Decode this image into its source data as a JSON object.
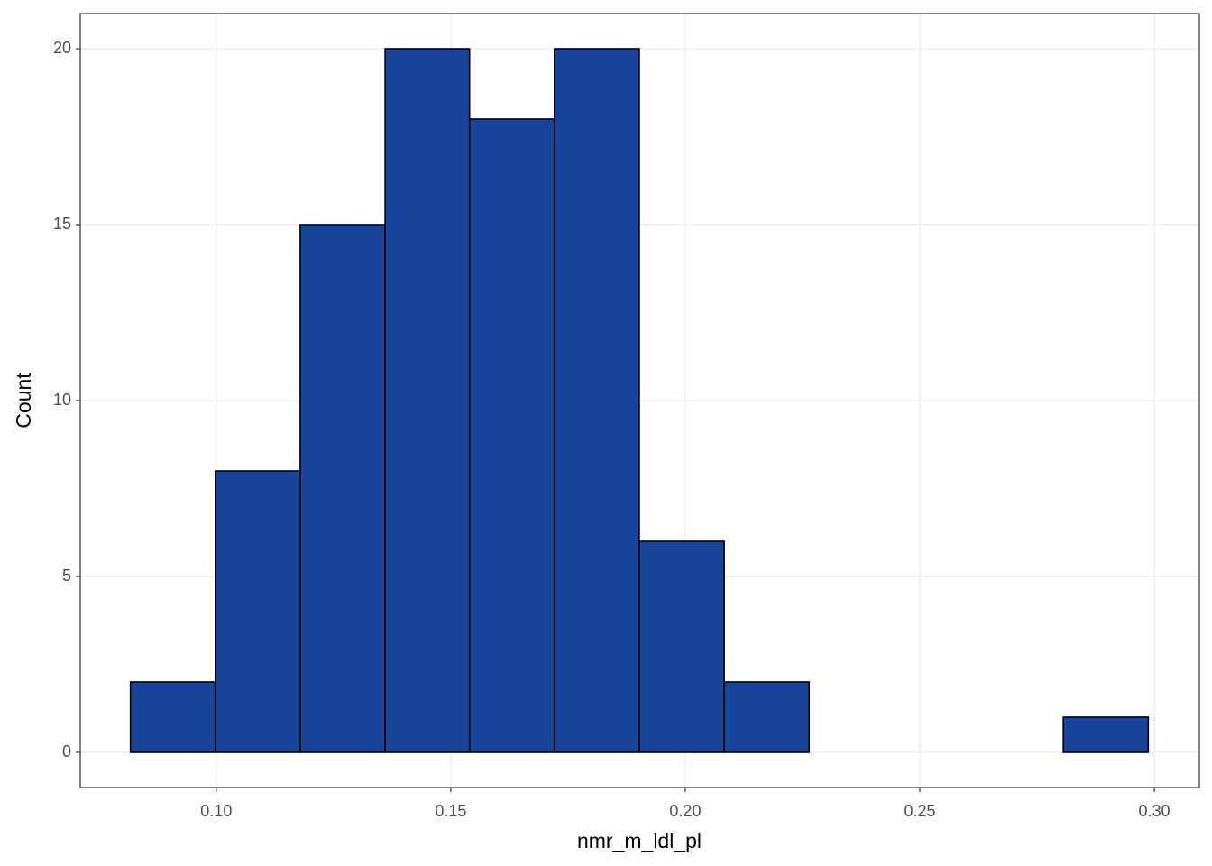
{
  "chart_data": {
    "type": "histogram",
    "x_label": "nmr_m_ldl_pl",
    "y_label": "Count",
    "bins": [
      0.0817,
      0.0998,
      0.1179,
      0.136,
      0.154,
      0.1721,
      0.1902,
      0.2083,
      0.2264,
      0.2444,
      0.2625,
      0.2806,
      0.2987
    ],
    "values": [
      2,
      8,
      15,
      20,
      18,
      20,
      6,
      2,
      0,
      0,
      0,
      1
    ],
    "color": "#18449a",
    "edgecolor": "#000000",
    "xlim": [
      0.071,
      0.3096
    ],
    "ylim": [
      -1,
      21
    ],
    "xticks": [
      {
        "value": 0.1,
        "label": "0.10"
      },
      {
        "value": 0.15,
        "label": "0.15"
      },
      {
        "value": 0.2,
        "label": "0.20"
      },
      {
        "value": 0.25,
        "label": "0.25"
      },
      {
        "value": 0.3,
        "label": "0.30"
      }
    ],
    "yticks": [
      0,
      5,
      10,
      15,
      20
    ],
    "grid": true
  }
}
